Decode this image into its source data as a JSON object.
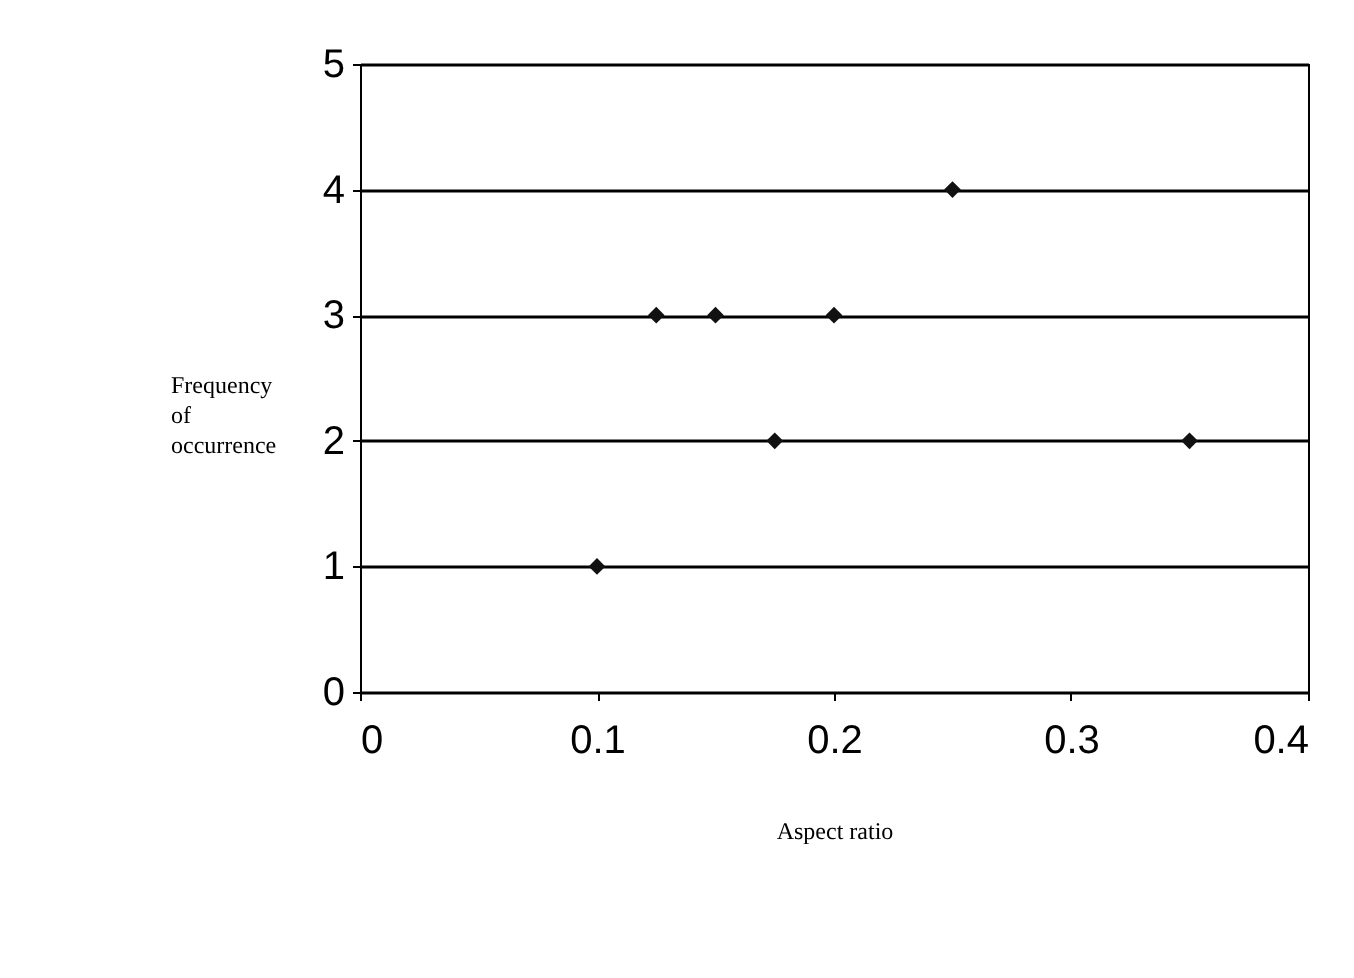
{
  "chart_data": {
    "type": "scatter",
    "xlabel": "Aspect ratio",
    "ylabel": "Frequency of occurrence",
    "x": [
      0.1,
      0.125,
      0.15,
      0.175,
      0.2,
      0.25,
      0.35
    ],
    "values": [
      1,
      3,
      3,
      2,
      3,
      4,
      2
    ],
    "color": "#111111",
    "marker": "diamond",
    "grid": "y",
    "xlim": [
      0,
      0.4
    ],
    "xticks": [
      0,
      0.1,
      0.2,
      0.3,
      0.4
    ],
    "ylim": [
      0,
      5
    ],
    "yticks": [
      0,
      1,
      2,
      3,
      4,
      5
    ]
  }
}
